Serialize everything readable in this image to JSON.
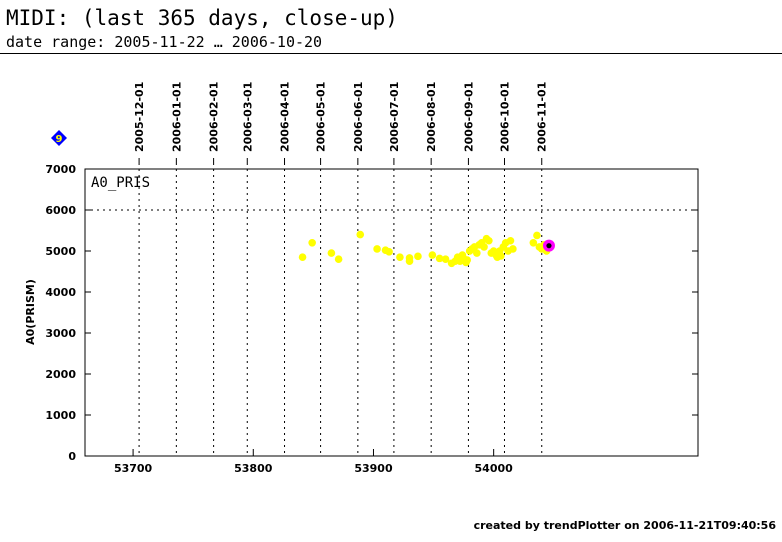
{
  "header": {
    "title": "MIDI: (last 365 days, close-up)",
    "subtitle": "date range: 2005-11-22 … 2006-10-20"
  },
  "footer": {
    "text": "created by trendPlotter on 2006-11-21T09:40:56"
  },
  "badge": {
    "text": "9",
    "color": "#0000ff",
    "text_color": "#ffff00"
  },
  "chart_data": {
    "type": "scatter",
    "panel_label": "A0_PRIS",
    "ylabel": "A0(PRISM)",
    "xlabel": "",
    "xlim": [
      53660,
      54170
    ],
    "ylim": [
      0,
      7000
    ],
    "x_ticks": [
      53700,
      53800,
      53900,
      54000
    ],
    "y_ticks": [
      0,
      1000,
      2000,
      3000,
      4000,
      5000,
      6000,
      7000
    ],
    "date_ticks": [
      {
        "label": "2005-12-01",
        "mjd": 53705
      },
      {
        "label": "2006-01-01",
        "mjd": 53736
      },
      {
        "label": "2006-02-01",
        "mjd": 53767
      },
      {
        "label": "2006-03-01",
        "mjd": 53795
      },
      {
        "label": "2006-04-01",
        "mjd": 53826
      },
      {
        "label": "2006-05-01",
        "mjd": 53856
      },
      {
        "label": "2006-06-01",
        "mjd": 53887
      },
      {
        "label": "2006-07-01",
        "mjd": 53917
      },
      {
        "label": "2006-08-01",
        "mjd": 53948
      },
      {
        "label": "2006-09-01",
        "mjd": 53979
      },
      {
        "label": "2006-10-01",
        "mjd": 54009
      },
      {
        "label": "2006-11-01",
        "mjd": 54040
      }
    ],
    "grid": "dotted",
    "hline": 6000,
    "point_color": "#ffff00",
    "highlight_color": "#ff00ff",
    "series": [
      {
        "points": [
          [
            53841,
            4850
          ],
          [
            53849,
            5200
          ],
          [
            53865,
            4950
          ],
          [
            53871,
            4800
          ],
          [
            53889,
            5400
          ],
          [
            53903,
            5050
          ],
          [
            53910,
            5020
          ],
          [
            53913,
            4980
          ],
          [
            53922,
            4850
          ],
          [
            53930,
            4830
          ],
          [
            53930,
            4750
          ],
          [
            53937,
            4870
          ],
          [
            53949,
            4900
          ],
          [
            53955,
            4820
          ],
          [
            53960,
            4800
          ],
          [
            53965,
            4700
          ],
          [
            53968,
            4750
          ],
          [
            53970,
            4850
          ],
          [
            53972,
            4750
          ],
          [
            53974,
            4900
          ],
          [
            53975,
            4820
          ],
          [
            53977,
            4720
          ],
          [
            53978,
            4780
          ],
          [
            53980,
            5000
          ],
          [
            53982,
            5050
          ],
          [
            53984,
            5100
          ],
          [
            53986,
            4950
          ],
          [
            53988,
            5150
          ],
          [
            53990,
            5200
          ],
          [
            53992,
            5100
          ],
          [
            53994,
            5300
          ],
          [
            53996,
            5250
          ],
          [
            53998,
            4950
          ],
          [
            54000,
            5000
          ],
          [
            54002,
            4900
          ],
          [
            54003,
            4850
          ],
          [
            54005,
            5000
          ],
          [
            54006,
            4880
          ],
          [
            54008,
            5100
          ],
          [
            54010,
            5200
          ],
          [
            54012,
            5000
          ],
          [
            54014,
            5250
          ],
          [
            54016,
            5050
          ],
          [
            54033,
            5200
          ],
          [
            54036,
            5380
          ],
          [
            54038,
            5100
          ],
          [
            54040,
            5050
          ],
          [
            54042,
            5150
          ],
          [
            54044,
            5000
          ],
          [
            54046,
            5100
          ]
        ]
      }
    ],
    "highlight": [
      54046,
      5130
    ]
  }
}
